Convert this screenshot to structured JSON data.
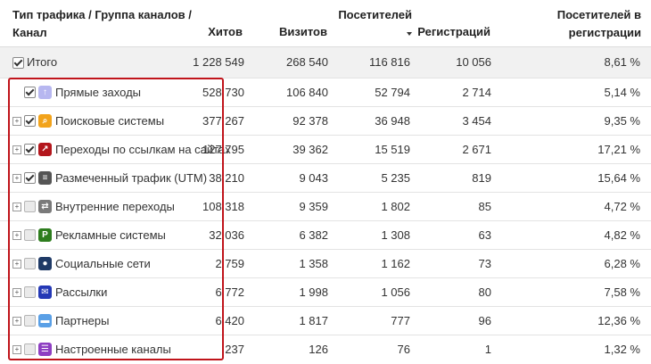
{
  "header": {
    "name_col": "Тип трафика / Группа каналов / Канал",
    "hits": "Хитов",
    "visits": "Визитов",
    "visitors": "Посетителей",
    "registrations": "Регистраций",
    "visitors_in_reg": "Посетителей в регистрации"
  },
  "total": {
    "label": "Итого",
    "hits": "1 228 549",
    "visits": "268 540",
    "visitors": "116 816",
    "registrations": "10 056",
    "visitors_in_reg": "8,61 %"
  },
  "rows": [
    {
      "label": "Прямые заходы",
      "icon": "arrow-up-icon",
      "color": "#b7b7f0",
      "checked": true,
      "expander": false,
      "hits": "528 730",
      "visits": "106 840",
      "visitors": "52 794",
      "registrations": "2 714",
      "visitors_in_reg": "5,14 %"
    },
    {
      "label": "Поисковые системы",
      "icon": "search-icon",
      "color": "#f2a31b",
      "checked": true,
      "expander": true,
      "hits": "377 267",
      "visits": "92 378",
      "visitors": "36 948",
      "registrations": "3 454",
      "visitors_in_reg": "9,35 %"
    },
    {
      "label": "Переходы по ссылкам на сайтах",
      "icon": "external-link-icon",
      "color": "#b3161c",
      "checked": true,
      "expander": true,
      "hits": "127 795",
      "visits": "39 362",
      "visitors": "15 519",
      "registrations": "2 671",
      "visitors_in_reg": "17,21 %"
    },
    {
      "label": "Размеченный трафик (UTM)",
      "icon": "list-icon",
      "color": "#555555",
      "checked": true,
      "expander": true,
      "hits": "38 210",
      "visits": "9 043",
      "visitors": "5 235",
      "registrations": "819",
      "visitors_in_reg": "15,64 %"
    },
    {
      "label": "Внутренние переходы",
      "icon": "swap-arrows-icon",
      "color": "#7a7a7a",
      "checked": false,
      "expander": true,
      "hits": "108 318",
      "visits": "9 359",
      "visitors": "1 802",
      "registrations": "85",
      "visitors_in_reg": "4,72 %"
    },
    {
      "label": "Рекламные системы",
      "icon": "ad-icon",
      "color": "#2e7d1e",
      "checked": false,
      "expander": true,
      "hits": "32 036",
      "visits": "6 382",
      "visitors": "1 308",
      "registrations": "63",
      "visitors_in_reg": "4,82 %"
    },
    {
      "label": "Социальные сети",
      "icon": "person-icon",
      "color": "#1f3a66",
      "checked": false,
      "expander": true,
      "hits": "2 759",
      "visits": "1 358",
      "visitors": "1 162",
      "registrations": "73",
      "visitors_in_reg": "6,28 %"
    },
    {
      "label": "Рассылки",
      "icon": "envelope-icon",
      "color": "#2438b5",
      "checked": false,
      "expander": true,
      "hits": "6 772",
      "visits": "1 998",
      "visitors": "1 056",
      "registrations": "80",
      "visitors_in_reg": "7,58 %"
    },
    {
      "label": "Партнеры",
      "icon": "chat-bubble-icon",
      "color": "#5aa0e6",
      "checked": false,
      "expander": true,
      "hits": "6 420",
      "visits": "1 817",
      "visitors": "777",
      "registrations": "96",
      "visitors_in_reg": "12,36 %"
    },
    {
      "label": "Настроенные каналы",
      "icon": "channels-icon",
      "color": "#8e3fc2",
      "checked": false,
      "expander": true,
      "hits": "237",
      "visits": "126",
      "visitors": "76",
      "registrations": "1",
      "visitors_in_reg": "1,32 %"
    }
  ]
}
